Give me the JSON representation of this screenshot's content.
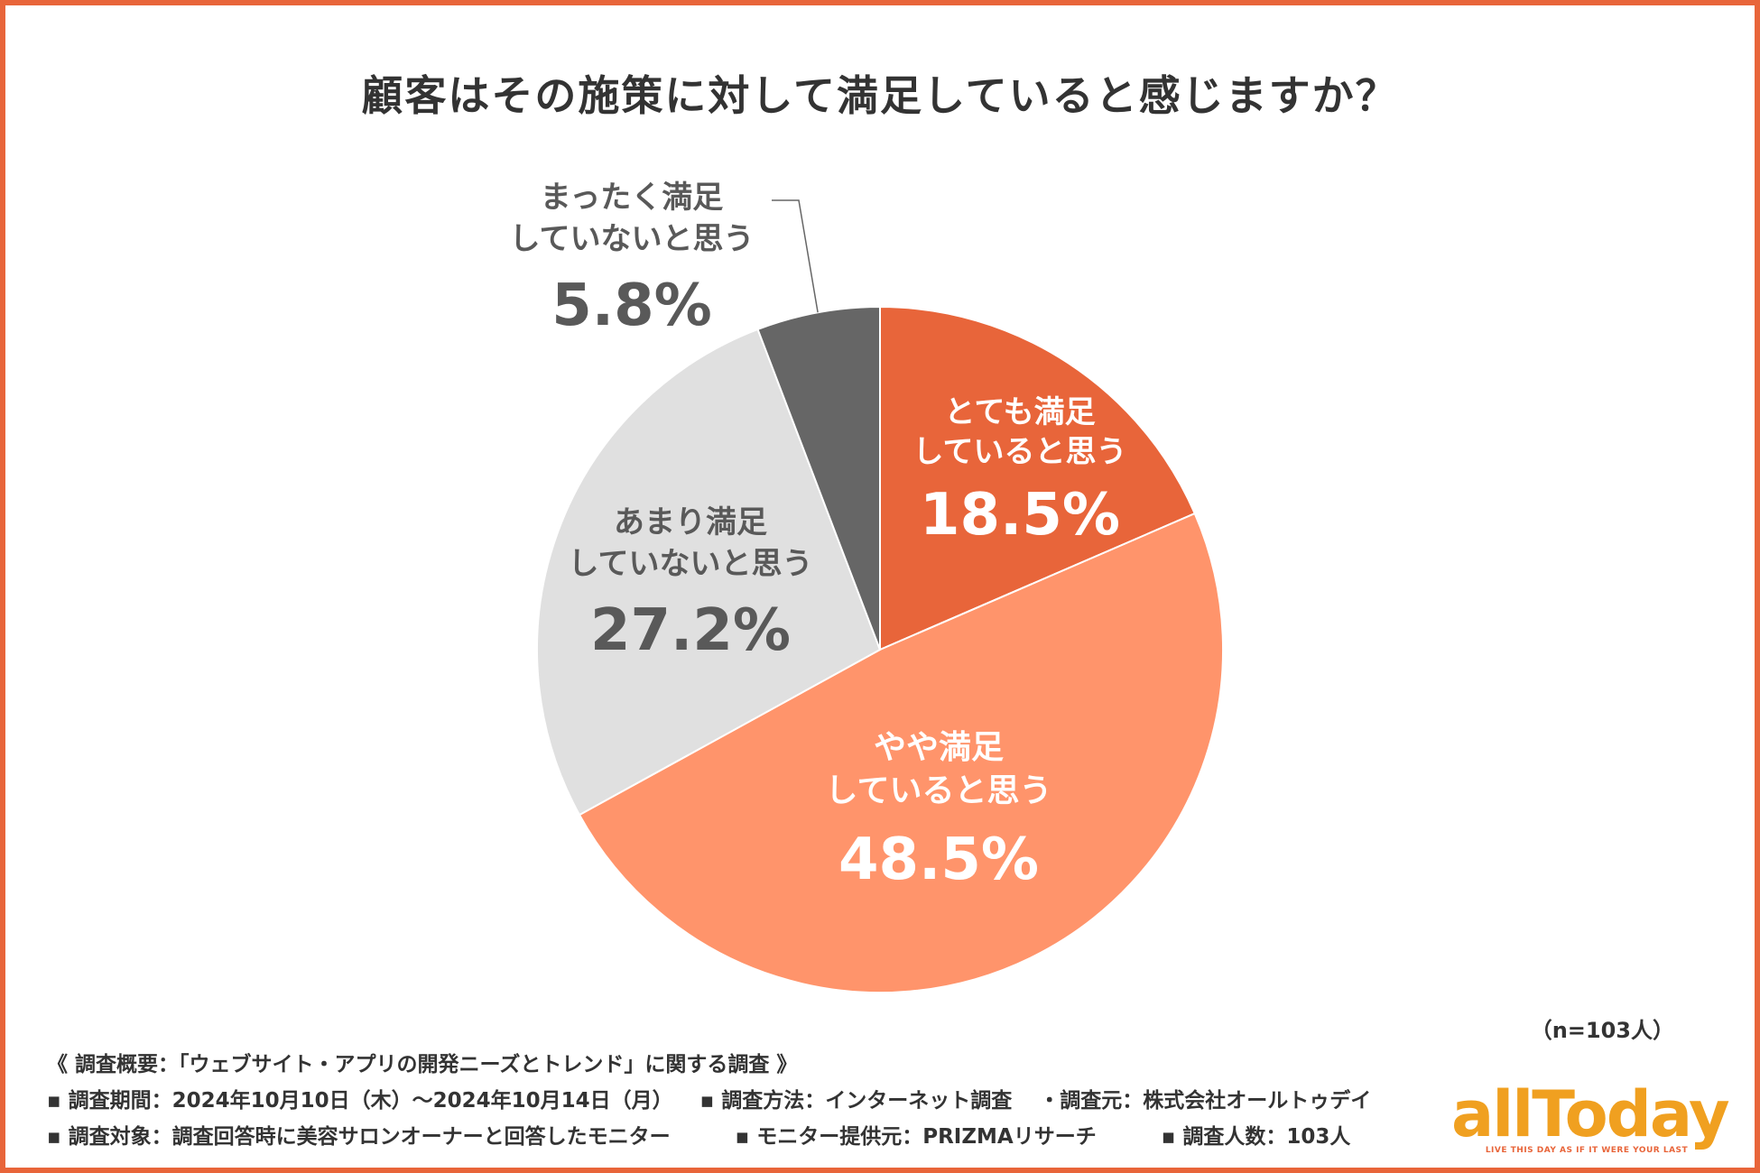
{
  "chart_data": {
    "type": "pie",
    "title": "顧客はその施策に対して満足していると感じますか？",
    "slices": [
      {
        "label_lines": [
          "とても満足",
          "していると思う"
        ],
        "value": 18.5,
        "value_label": "18.5%",
        "color": "#E8653A",
        "text_color": "#ffffff"
      },
      {
        "label_lines": [
          "やや満足",
          "していると思う"
        ],
        "value": 48.5,
        "value_label": "48.5%",
        "color": "#FF946B",
        "text_color": "#ffffff"
      },
      {
        "label_lines": [
          "あまり満足",
          "していないと思う"
        ],
        "value": 27.2,
        "value_label": "27.2%",
        "color": "#E0E0E0",
        "text_color": "#595959"
      },
      {
        "label_lines": [
          "まったく満足",
          "していないと思う"
        ],
        "value": 5.8,
        "value_label": "5.8%",
        "color": "#666666",
        "text_color": "#595959"
      }
    ],
    "start": "top",
    "direction": "clockwise"
  },
  "sample_note": "（n=103人）",
  "footer": {
    "summary": "《 調査概要：「ウェブサイト・アプリの開発ニーズとトレンド」に関する調査 》",
    "period": "▪ 調査期間：2024年10月10日（木）〜2024年10月14日（月）",
    "method": "▪ 調査方法：インターネット調査",
    "source": "・調査元：株式会社オールトゥデイ",
    "target": "▪ 調査対象：調査回答時に美容サロンオーナーと回答したモニター",
    "provider": "▪ モニター提供元：PRIZMAリサーチ",
    "count": "▪ 調査人数：103人"
  },
  "logo": {
    "text": "allToday",
    "tagline": "LIVE THIS DAY AS IF IT WERE YOUR LAST"
  }
}
